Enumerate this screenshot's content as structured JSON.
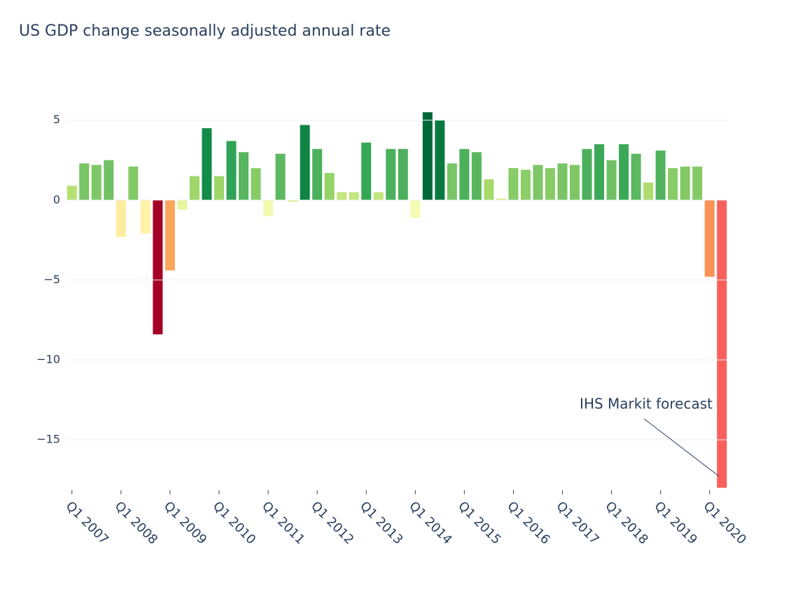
{
  "chart_data": {
    "type": "bar",
    "title": "US GDP change seasonally adjusted annual rate",
    "categories": [
      "Q1 2007",
      null,
      null,
      null,
      "Q1 2008",
      null,
      null,
      null,
      "Q1 2009",
      null,
      null,
      null,
      "Q1 2010",
      null,
      null,
      null,
      "Q1 2011",
      null,
      null,
      null,
      "Q1 2012",
      null,
      null,
      null,
      "Q1 2013",
      null,
      null,
      null,
      "Q1 2014",
      null,
      null,
      null,
      "Q1 2015",
      null,
      null,
      null,
      "Q1 2016",
      null,
      null,
      null,
      "Q1 2017",
      null,
      null,
      null,
      "Q1 2018",
      null,
      null,
      null,
      "Q1 2019",
      null,
      null,
      null,
      "Q1 2020",
      null
    ],
    "values": [
      0.9,
      2.3,
      2.2,
      2.5,
      -2.3,
      2.1,
      -2.1,
      -8.4,
      -4.4,
      -0.6,
      1.5,
      4.5,
      1.5,
      3.7,
      3.0,
      2.0,
      -1.0,
      2.9,
      -0.1,
      4.7,
      3.2,
      1.7,
      0.5,
      0.5,
      3.6,
      0.5,
      3.2,
      3.2,
      -1.1,
      5.5,
      5.0,
      2.3,
      3.2,
      3.0,
      1.3,
      0.1,
      2.0,
      1.9,
      2.2,
      2.0,
      2.3,
      2.2,
      3.2,
      3.5,
      2.5,
      3.5,
      2.9,
      1.1,
      3.1,
      2.0,
      2.1,
      2.1,
      -4.8,
      -18.0
    ],
    "colorscale": [
      "#a50026",
      "#d73027",
      "#f46d43",
      "#fdae61",
      "#fee08b",
      "#ffffbf",
      "#d9ef8b",
      "#a6d96a",
      "#66bd63",
      "#1a9850",
      "#006837"
    ],
    "cmin": -8.4,
    "cmax": 5.5,
    "last_bar_color": "#f7605c",
    "ylim": [
      -18.15,
      6.3
    ],
    "yticks": [
      {
        "value": 5,
        "label": "5"
      },
      {
        "value": 0,
        "label": "0"
      },
      {
        "value": -5,
        "label": "−5"
      },
      {
        "value": -10,
        "label": "−10"
      },
      {
        "value": -15,
        "label": "−15"
      }
    ],
    "grid": true,
    "annotation": "IHS Markit forecast"
  }
}
